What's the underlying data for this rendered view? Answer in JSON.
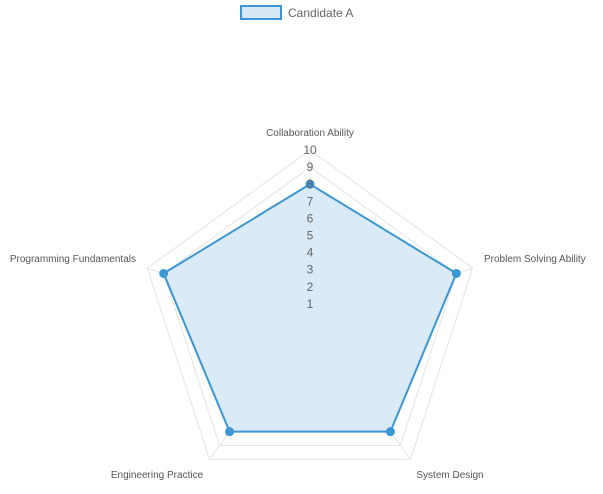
{
  "chart_data": {
    "type": "radar",
    "title": "",
    "axes": [
      "Collaboration Ability",
      "Problem Solving Ability",
      "System Design",
      "Engineering Practice",
      "Programming Fundamentals"
    ],
    "r_range": [
      0,
      10
    ],
    "ticks": [
      "1",
      "2",
      "3",
      "4",
      "5",
      "6",
      "7",
      "8",
      "9",
      "10"
    ],
    "grid": true,
    "legend_position": "top-center",
    "series": [
      {
        "name": "Candidate A",
        "values": [
          8,
          9,
          8,
          8,
          9
        ],
        "color": "#3a97d4",
        "fill": "#d6e8f6"
      }
    ]
  }
}
